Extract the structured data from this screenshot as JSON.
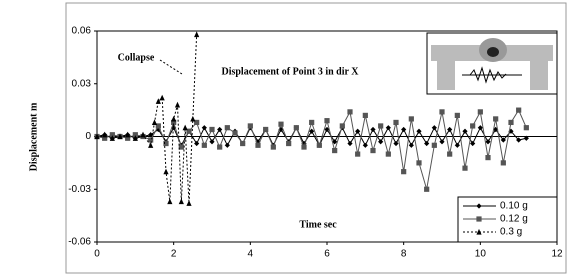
{
  "chart_data": {
    "type": "line",
    "title": "Displacement of Point 3  in dir X",
    "y_label": "Displacement  m",
    "x_label": "Time   sec",
    "annotation": "Collapse",
    "xlim": [
      0,
      12
    ],
    "xticks": [
      0,
      2,
      4,
      6,
      8,
      10,
      12
    ],
    "ylim": [
      -0.06,
      0.06
    ],
    "yticks": [
      -0.06,
      -0.03,
      0,
      0.03,
      0.06
    ],
    "legend": "lower right",
    "series": [
      {
        "name": "0.10 g",
        "color": "#000000",
        "marker": "diamond",
        "dash": false,
        "x": [
          0,
          0.2,
          0.4,
          0.6,
          0.8,
          1,
          1.2,
          1.4,
          1.6,
          1.8,
          2,
          2.2,
          2.4,
          2.6,
          2.8,
          3,
          3.2,
          3.4,
          3.6,
          3.8,
          4,
          4.2,
          4.4,
          4.6,
          4.8,
          5,
          5.2,
          5.4,
          5.6,
          5.8,
          6,
          6.2,
          6.4,
          6.6,
          6.8,
          7,
          7.2,
          7.4,
          7.6,
          7.8,
          8,
          8.2,
          8.4,
          8.6,
          8.8,
          9,
          9.2,
          9.4,
          9.6,
          9.8,
          10,
          10.2,
          10.4,
          10.6,
          10.8,
          11,
          11.2
        ],
        "values": [
          0,
          0.001,
          -0.001,
          0,
          0.001,
          -0.001,
          0,
          0.001,
          0.004,
          -0.003,
          0.005,
          -0.005,
          0.003,
          -0.004,
          0.005,
          -0.003,
          0.004,
          -0.005,
          0.003,
          -0.004,
          0.005,
          -0.003,
          0.004,
          -0.005,
          0.004,
          -0.003,
          0.005,
          -0.004,
          0.003,
          -0.005,
          0.004,
          -0.003,
          0.005,
          -0.004,
          0.003,
          -0.005,
          0.004,
          -0.003,
          0.005,
          -0.004,
          0.004,
          -0.005,
          0.003,
          -0.004,
          0.005,
          -0.003,
          0.004,
          -0.005,
          0.003,
          -0.004,
          0.005,
          -0.003,
          0.004,
          -0.002,
          0.003,
          -0.002,
          -0.001
        ]
      },
      {
        "name": "0.12 g",
        "color": "#555555",
        "marker": "square",
        "dash": false,
        "x": [
          0,
          0.2,
          0.4,
          0.6,
          0.8,
          1,
          1.2,
          1.4,
          1.6,
          1.8,
          2,
          2.2,
          2.4,
          2.6,
          2.8,
          3,
          3.2,
          3.4,
          3.6,
          3.8,
          4,
          4.2,
          4.4,
          4.6,
          4.8,
          5,
          5.2,
          5.4,
          5.6,
          5.8,
          6,
          6.2,
          6.4,
          6.6,
          6.8,
          7,
          7.2,
          7.4,
          7.6,
          7.8,
          8,
          8.2,
          8.4,
          8.6,
          8.8,
          9,
          9.2,
          9.4,
          9.6,
          9.8,
          10,
          10.2,
          10.4,
          10.6,
          10.8,
          11,
          11.2
        ],
        "values": [
          0,
          -0.001,
          0.001,
          0,
          -0.001,
          0.001,
          0,
          -0.002,
          0.006,
          -0.004,
          0.008,
          -0.006,
          0.003,
          0.008,
          -0.005,
          0.004,
          -0.006,
          0.005,
          0.002,
          -0.004,
          0.006,
          -0.005,
          0.004,
          -0.006,
          0.007,
          -0.004,
          0.005,
          -0.006,
          0.008,
          -0.005,
          0.009,
          -0.008,
          0.006,
          0.014,
          -0.01,
          0.012,
          -0.008,
          0.006,
          -0.01,
          0.008,
          -0.02,
          0.01,
          -0.015,
          -0.03,
          -0.005,
          0.014,
          -0.01,
          0.012,
          -0.018,
          0.006,
          0.014,
          -0.012,
          0.01,
          -0.015,
          0.008,
          0.015,
          0.005
        ]
      },
      {
        "name": "0.3 g",
        "color": "#000000",
        "marker": "triangle",
        "dash": true,
        "x": [
          0,
          0.2,
          0.4,
          0.6,
          0.8,
          1,
          1.2,
          1.4,
          1.5,
          1.6,
          1.7,
          1.8,
          1.9,
          2,
          2.1,
          2.2,
          2.3,
          2.4,
          2.5,
          2.6
        ],
        "values": [
          0,
          0.001,
          -0.001,
          0,
          0.001,
          -0.001,
          0.001,
          -0.005,
          0.008,
          0.02,
          0.022,
          -0.02,
          -0.037,
          0.01,
          0.018,
          -0.037,
          0.005,
          -0.038,
          0.01,
          0.058
        ]
      }
    ]
  }
}
